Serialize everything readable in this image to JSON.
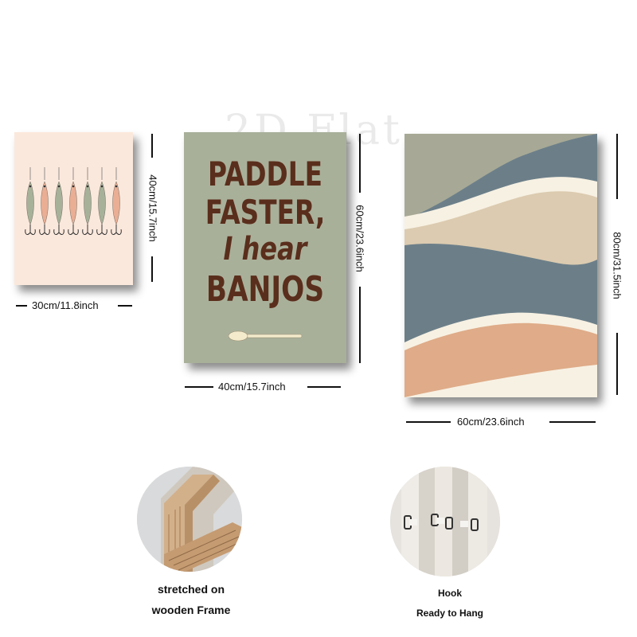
{
  "watermark": "2D Flat",
  "panel1": {
    "width_label": "30cm/11.8inch",
    "height_label": "40cm/15.7inch",
    "colors": {
      "background": "#fbe8dc",
      "lure_green": "#a7b19a",
      "lure_peach": "#e9ae94"
    }
  },
  "panel2": {
    "quote_line1": "PADDLE",
    "quote_line2": "FASTER,",
    "quote_line3": "I hear",
    "quote_line4": "BANJOS",
    "width_label": "40cm/15.7inch",
    "height_label": "60cm/23.6inch",
    "colors": {
      "background": "#a9b09a",
      "text": "#5a2e1c",
      "paddle": "#f3ebcc"
    }
  },
  "panel3": {
    "width_label": "60cm/23.6inch",
    "height_label": "80cm/31.5inch",
    "colors": {
      "sage": "#a7a996",
      "slate": "#6c7f89",
      "sand": "#dccbb0",
      "cream": "#f7f1e3",
      "peach": "#dfab88"
    }
  },
  "feature1": {
    "caption_line1": "stretched on",
    "caption_line2": "wooden Frame"
  },
  "feature2": {
    "caption_line1": "Hook",
    "caption_line2": "Ready to Hang"
  }
}
